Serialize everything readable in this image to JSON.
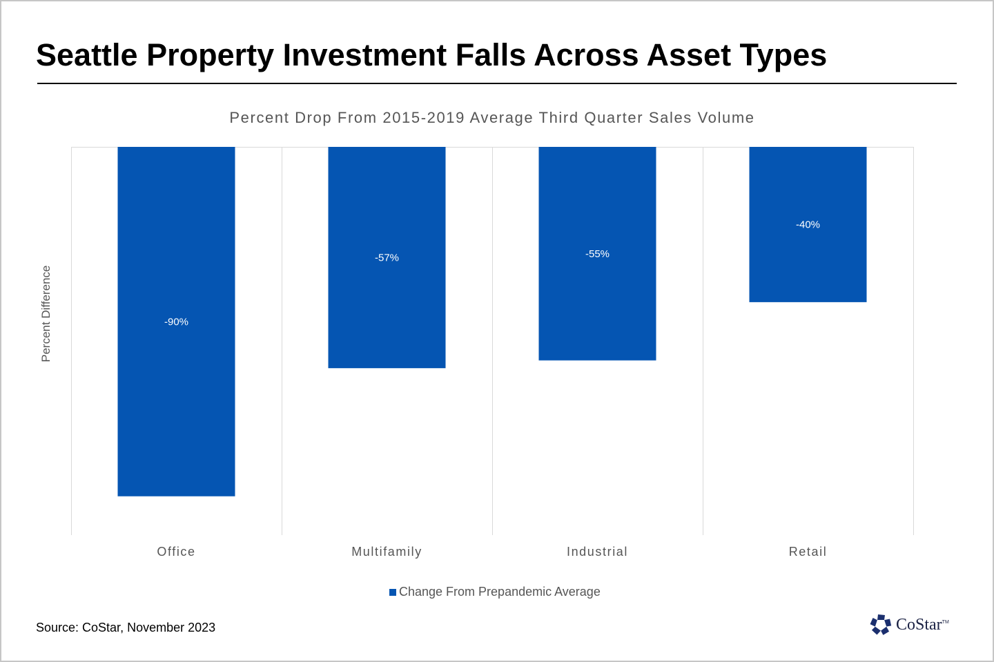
{
  "header": {
    "title": "Seattle Property Investment Falls Across Asset Types"
  },
  "footer": {
    "source": "Source: CoStar, November 2023",
    "logo_text": "CoStar",
    "logo_tm": "TM",
    "logo_icon": "costar-star-logo-icon"
  },
  "colors": {
    "bar": "#0555b2",
    "grid": "#d9d9d9",
    "axis_text": "#555555",
    "logo": "#1b2f6e"
  },
  "chart_data": {
    "type": "bar",
    "title": "Percent Drop From 2015-2019 Average Third Quarter Sales Volume",
    "xlabel": "",
    "ylabel": "Percent Difference",
    "categories": [
      "Office",
      "Multifamily",
      "Industrial",
      "Retail"
    ],
    "series": [
      {
        "name": "Change From Prepandemic Average",
        "values": [
          -90,
          -57,
          -55,
          -40
        ],
        "labels": [
          "-90%",
          "-57%",
          "-55%",
          "-40%"
        ]
      }
    ],
    "ylim": [
      -100,
      0
    ],
    "y_ticks_visible": false,
    "grid": "vertical category separators",
    "legend": "bottom-center"
  }
}
